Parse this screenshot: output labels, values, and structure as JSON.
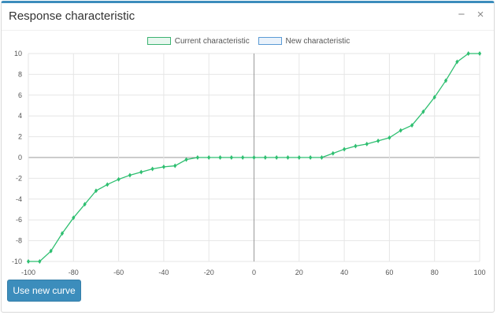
{
  "panel": {
    "title": "Response characteristic",
    "tools": {
      "collapse_icon": "minus-icon",
      "close_icon": "close-icon"
    }
  },
  "legend": {
    "items": [
      {
        "label": "Current characteristic",
        "color": "#3cb371",
        "fill": "#e8f7ef"
      },
      {
        "label": "New characteristic",
        "color": "#5b9bd5",
        "fill": "#eaf2fb"
      }
    ]
  },
  "button": {
    "label": "Use new curve"
  },
  "colors": {
    "accent": "#3c8dbc",
    "series": "#2fbf71",
    "grid": "#e6e6e6",
    "axis": "#999999"
  },
  "chart_data": {
    "type": "line",
    "xlim": [
      -100,
      100
    ],
    "ylim": [
      -10,
      10
    ],
    "x_ticks": [
      -100,
      -80,
      -60,
      -40,
      -20,
      0,
      20,
      40,
      60,
      80,
      100
    ],
    "y_ticks": [
      10,
      8,
      6,
      4,
      2,
      0,
      -2,
      -4,
      -6,
      -8,
      -10
    ],
    "grid": true,
    "legend_position": "top-center",
    "series": [
      {
        "name": "Current characteristic",
        "x": [
          -100,
          -95,
          -90,
          -85,
          -80,
          -75,
          -70,
          -65,
          -60,
          -55,
          -50,
          -45,
          -40,
          -35,
          -30,
          -25,
          -20,
          -15,
          -10,
          -5,
          0,
          5,
          10,
          15,
          20,
          25,
          30,
          35,
          40,
          45,
          50,
          55,
          60,
          65,
          70,
          75,
          80,
          85,
          90,
          95,
          100
        ],
        "y": [
          -10,
          -10,
          -9,
          -7.3,
          -5.8,
          -4.5,
          -3.2,
          -2.6,
          -2.1,
          -1.7,
          -1.4,
          -1.1,
          -0.9,
          -0.8,
          -0.2,
          0,
          0,
          0,
          0,
          0,
          0,
          0,
          0,
          0,
          0,
          0,
          0,
          0.4,
          0.8,
          1.1,
          1.3,
          1.6,
          1.9,
          2.6,
          3.1,
          4.4,
          5.8,
          7.4,
          9.2,
          10,
          10
        ]
      },
      {
        "name": "New characteristic",
        "x": [],
        "y": []
      }
    ]
  }
}
